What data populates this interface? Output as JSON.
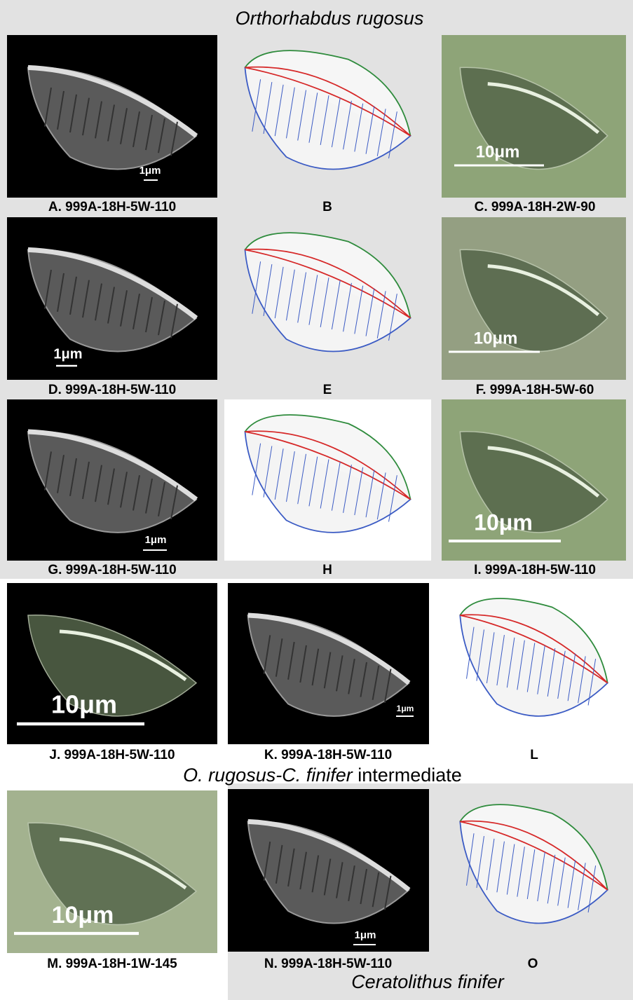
{
  "title": "Orthorhabdus rugosus",
  "panels": [
    {
      "caption": "A. 999A-18H-5W-110",
      "scale": "1μm"
    },
    {
      "caption": "B"
    },
    {
      "caption": "C. 999A-18H-2W-90",
      "scale": "10μm"
    },
    {
      "caption": "D. 999A-18H-5W-110",
      "scale": "1μm"
    },
    {
      "caption": "E"
    },
    {
      "caption": "F. 999A-18H-5W-60",
      "scale": "10μm"
    },
    {
      "caption": "G. 999A-18H-5W-110",
      "scale": "1μm"
    },
    {
      "caption": "H"
    },
    {
      "caption": "I. 999A-18H-5W-110",
      "scale": "10μm"
    },
    {
      "caption": "J. 999A-18H-5W-110",
      "scale": "10μm"
    },
    {
      "caption": "K. 999A-18H-5W-110",
      "scale": "1μm"
    },
    {
      "caption": "L"
    },
    {
      "caption": "M. 999A-18H-1W-145",
      "scale": "10μm"
    },
    {
      "caption": "N. 999A-18H-5W-110",
      "scale": "1μm"
    },
    {
      "caption": "O"
    }
  ],
  "sections": {
    "intermediate_italic": "O. rugosus-C. finifer",
    "intermediate_rest": " intermediate",
    "finifer": "Ceratolithus finifer"
  }
}
